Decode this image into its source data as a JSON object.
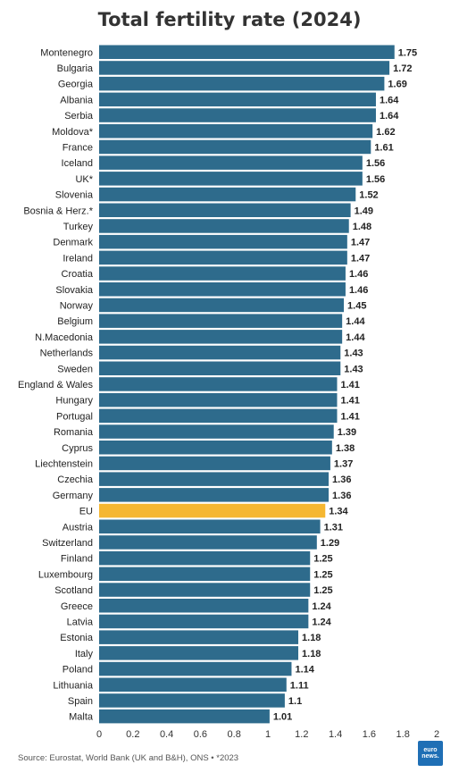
{
  "chart_data": {
    "type": "bar",
    "orientation": "horizontal",
    "title": "Total fertility rate (2024)",
    "categories": [
      "Montenegro",
      "Bulgaria",
      "Georgia",
      "Albania",
      "Serbia",
      "Moldova*",
      "France",
      "Iceland",
      "UK*",
      "Slovenia",
      "Bosnia & Herz.*",
      "Turkey",
      "Denmark",
      "Ireland",
      "Croatia",
      "Slovakia",
      "Norway",
      "Belgium",
      "N.Macedonia",
      "Netherlands",
      "Sweden",
      "England & Wales",
      "Hungary",
      "Portugal",
      "Romania",
      "Cyprus",
      "Liechtenstein",
      "Czechia",
      "Germany",
      "EU",
      "Austria",
      "Switzerland",
      "Finland",
      "Luxembourg",
      "Scotland",
      "Greece",
      "Latvia",
      "Estonia",
      "Italy",
      "Poland",
      "Lithuania",
      "Spain",
      "Malta"
    ],
    "values": [
      1.75,
      1.72,
      1.69,
      1.64,
      1.64,
      1.62,
      1.61,
      1.56,
      1.56,
      1.52,
      1.49,
      1.48,
      1.47,
      1.47,
      1.46,
      1.46,
      1.45,
      1.44,
      1.44,
      1.43,
      1.43,
      1.41,
      1.41,
      1.41,
      1.39,
      1.38,
      1.37,
      1.36,
      1.36,
      1.34,
      1.31,
      1.29,
      1.25,
      1.25,
      1.25,
      1.24,
      1.24,
      1.18,
      1.18,
      1.14,
      1.11,
      1.1,
      1.01
    ],
    "value_labels": [
      "1.75",
      "1.72",
      "1.69",
      "1.64",
      "1.64",
      "1.62",
      "1.61",
      "1.56",
      "1.56",
      "1.52",
      "1.49",
      "1.48",
      "1.47",
      "1.47",
      "1.46",
      "1.46",
      "1.45",
      "1.44",
      "1.44",
      "1.43",
      "1.43",
      "1.41",
      "1.41",
      "1.41",
      "1.39",
      "1.38",
      "1.37",
      "1.36",
      "1.36",
      "1.34",
      "1.31",
      "1.29",
      "1.25",
      "1.25",
      "1.25",
      "1.24",
      "1.24",
      "1.18",
      "1.18",
      "1.14",
      "1.11",
      "1.1",
      "1.01"
    ],
    "xlim": [
      0,
      2
    ],
    "xticks": [
      "0",
      "0.2",
      "0.4",
      "0.6",
      "0.8",
      "1",
      "1.2",
      "1.4",
      "1.6",
      "1.8",
      "2"
    ],
    "highlight_category": "EU",
    "colors": {
      "bar": "#2e6b8c",
      "highlight": "#f5b731"
    },
    "grid": false
  },
  "source": "Source: Eurostat, World Bank (UK and B&H), ONS • *2023",
  "logo": {
    "line1": "euro",
    "line2": "news."
  }
}
